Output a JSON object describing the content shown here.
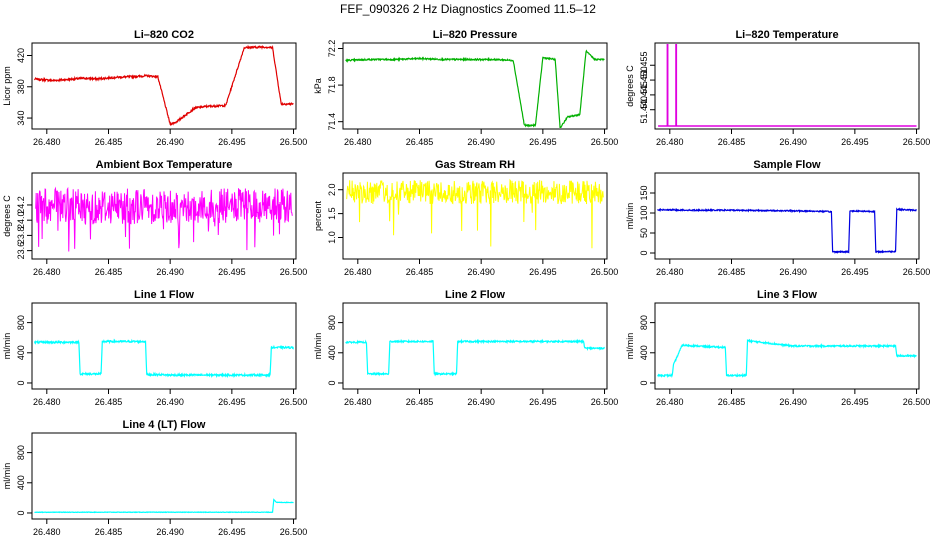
{
  "main_title": "FEF_090326  2 Hz Diagnostics Zoomed 11.5–12",
  "x_ticks": [
    "26.480",
    "26.485",
    "26.490",
    "26.495",
    "26.500"
  ],
  "chart_data": [
    {
      "id": "p1",
      "type": "line",
      "title": "Li–820 CO2",
      "ylabel": "Licor ppm",
      "color": "#e00000",
      "xlim": [
        26.4788,
        26.5002
      ],
      "ylim": [
        326,
        436
      ],
      "yticks": [
        340,
        380,
        420
      ],
      "ytick_labels": [
        "340",
        "380",
        "420"
      ],
      "noise": 1.2,
      "spike": 0,
      "x": [
        26.479,
        26.4805,
        26.4815,
        26.483,
        26.484,
        26.4855,
        26.487,
        26.488,
        26.489,
        26.49,
        26.4905,
        26.492,
        26.493,
        26.4945,
        26.496,
        26.4975,
        26.4983,
        26.499,
        26.5
      ],
      "y": [
        390,
        388,
        389,
        391,
        390,
        392,
        393,
        394,
        393,
        332,
        335,
        353,
        355,
        356,
        430,
        431,
        430,
        358,
        358
      ]
    },
    {
      "id": "p2",
      "type": "line",
      "title": "Li–820 Pressure",
      "ylabel": "kPa",
      "color": "#00b000",
      "xlim": [
        26.4788,
        26.5002
      ],
      "ylim": [
        71.32,
        72.26
      ],
      "yticks": [
        71.4,
        71.8,
        72.2
      ],
      "ytick_labels": [
        "71.4",
        "71.8",
        "72.2"
      ],
      "noise": 0.008,
      "spike": 0,
      "x": [
        26.479,
        26.481,
        26.483,
        26.485,
        26.487,
        26.489,
        26.491,
        26.4926,
        26.4935,
        26.4944,
        26.495,
        26.496,
        26.4964,
        26.497,
        26.498,
        26.4985,
        26.4992,
        26.5
      ],
      "y": [
        72.07,
        72.08,
        72.08,
        72.09,
        72.08,
        72.08,
        72.08,
        72.07,
        71.36,
        71.36,
        72.1,
        72.08,
        71.33,
        71.45,
        71.48,
        72.17,
        72.08,
        72.08
      ]
    },
    {
      "id": "p3",
      "type": "spikes",
      "title": "Li–820 Temperature",
      "ylabel": "degrees C",
      "color": "#e000e0",
      "xlim": [
        26.4788,
        26.5002
      ],
      "ylim": [
        51.4335,
        51.4625
      ],
      "yticks": [
        51.44,
        51.445,
        51.45,
        51.455
      ],
      "ytick_labels": [
        "51.440",
        "51.445",
        "51.450",
        "51.455"
      ],
      "baseline": 51.4345,
      "peak": 51.4625,
      "x": [
        26.4798,
        26.4805
      ]
    },
    {
      "id": "p4",
      "type": "dense",
      "title": "Ambient Box Temperature",
      "ylabel": "degrees C",
      "color": "#ff00ff",
      "xlim": [
        26.4788,
        26.5002
      ],
      "ylim": [
        23.49,
        24.62
      ],
      "yticks": [
        23.6,
        23.8,
        24.0,
        24.2
      ],
      "ytick_labels": [
        "23.6",
        "23.8",
        "24.0",
        "24.2"
      ],
      "center": 24.15,
      "band_low": 23.95,
      "band_high": 24.42,
      "dip_min": 23.58,
      "dip_prob": 0.05,
      "x_start": 26.4791,
      "x_end": 26.4999,
      "n": 520
    },
    {
      "id": "p5",
      "type": "dense",
      "title": "Gas Stream RH",
      "ylabel": "percent",
      "color": "#ffff00",
      "xlim": [
        26.4788,
        26.5002
      ],
      "ylim": [
        0.55,
        2.35
      ],
      "yticks": [
        1.0,
        1.5,
        2.0
      ],
      "ytick_labels": [
        "1.0",
        "1.5",
        "2.0"
      ],
      "center": 1.95,
      "band_low": 1.7,
      "band_high": 2.2,
      "dip_min": 0.75,
      "dip_prob": 0.035,
      "x_start": 26.4791,
      "x_end": 26.4999,
      "n": 520
    },
    {
      "id": "p6",
      "type": "step",
      "title": "Sample Flow",
      "ylabel": "ml/min",
      "color": "#0000e0",
      "xlim": [
        26.4788,
        26.5002
      ],
      "ylim": [
        -15,
        200
      ],
      "yticks": [
        0,
        50,
        100,
        150
      ],
      "ytick_labels": [
        "0",
        "50",
        "100",
        "150"
      ],
      "noise": 1.5,
      "spike": 0,
      "x": [
        26.479,
        26.482,
        26.485,
        26.488,
        26.491,
        26.4925,
        26.4931,
        26.4932,
        26.4945,
        26.4946,
        26.4966,
        26.4967,
        26.4983,
        26.4984,
        26.5
      ],
      "y": [
        108,
        107,
        107,
        106,
        105,
        104,
        103,
        3,
        3,
        105,
        104,
        3,
        4,
        109,
        107
      ]
    },
    {
      "id": "p7",
      "type": "step",
      "title": "Line 1 Flow",
      "ylabel": "ml/min",
      "color": "#00ffff",
      "xlim": [
        26.4788,
        26.5002
      ],
      "ylim": [
        -80,
        1060
      ],
      "yticks": [
        0,
        400,
        800
      ],
      "ytick_labels": [
        "0",
        "400",
        "800"
      ],
      "noise": 12,
      "spike": 0,
      "x": [
        26.479,
        26.4826,
        26.4827,
        26.4844,
        26.4845,
        26.488,
        26.4881,
        26.4895,
        26.4896,
        26.4981,
        26.4982,
        26.5
      ],
      "y": [
        540,
        540,
        120,
        120,
        550,
        550,
        110,
        110,
        105,
        105,
        470,
        470
      ]
    },
    {
      "id": "p8",
      "type": "step",
      "title": "Line 2 Flow",
      "ylabel": "ml/min",
      "color": "#00ffff",
      "xlim": [
        26.4788,
        26.5002
      ],
      "ylim": [
        -80,
        1060
      ],
      "yticks": [
        0,
        400,
        800
      ],
      "ytick_labels": [
        "0",
        "400",
        "800"
      ],
      "noise": 10,
      "spike": 0,
      "x": [
        26.479,
        26.4807,
        26.4808,
        26.4825,
        26.4826,
        26.4861,
        26.4862,
        26.488,
        26.4881,
        26.4983,
        26.4984,
        26.5
      ],
      "y": [
        540,
        540,
        120,
        120,
        550,
        550,
        120,
        120,
        550,
        550,
        460,
        460
      ]
    },
    {
      "id": "p9",
      "type": "step",
      "title": "Line 3 Flow",
      "ylabel": "ml/min",
      "color": "#00ffff",
      "xlim": [
        26.4788,
        26.5002
      ],
      "ylim": [
        -80,
        1060
      ],
      "yticks": [
        0,
        400,
        800
      ],
      "ytick_labels": [
        "0",
        "400",
        "800"
      ],
      "noise": 10,
      "spike": 0,
      "x": [
        26.479,
        26.4802,
        26.4803,
        26.481,
        26.4845,
        26.4846,
        26.4862,
        26.4863,
        26.49,
        26.4983,
        26.4984,
        26.5
      ],
      "y": [
        100,
        100,
        240,
        500,
        470,
        100,
        100,
        560,
        490,
        490,
        360,
        360
      ]
    },
    {
      "id": "p10",
      "type": "step",
      "title": "Line 4 (LT) Flow",
      "ylabel": "ml/min",
      "color": "#00ffff",
      "xlim": [
        26.4788,
        26.5002
      ],
      "ylim": [
        -80,
        1060
      ],
      "yticks": [
        0,
        400,
        800
      ],
      "ytick_labels": [
        "0",
        "400",
        "800"
      ],
      "noise": 3,
      "spike": 0,
      "x": [
        26.479,
        26.49,
        26.4983,
        26.4984,
        26.4986,
        26.5
      ],
      "y": [
        10,
        10,
        10,
        180,
        140,
        140
      ]
    }
  ]
}
